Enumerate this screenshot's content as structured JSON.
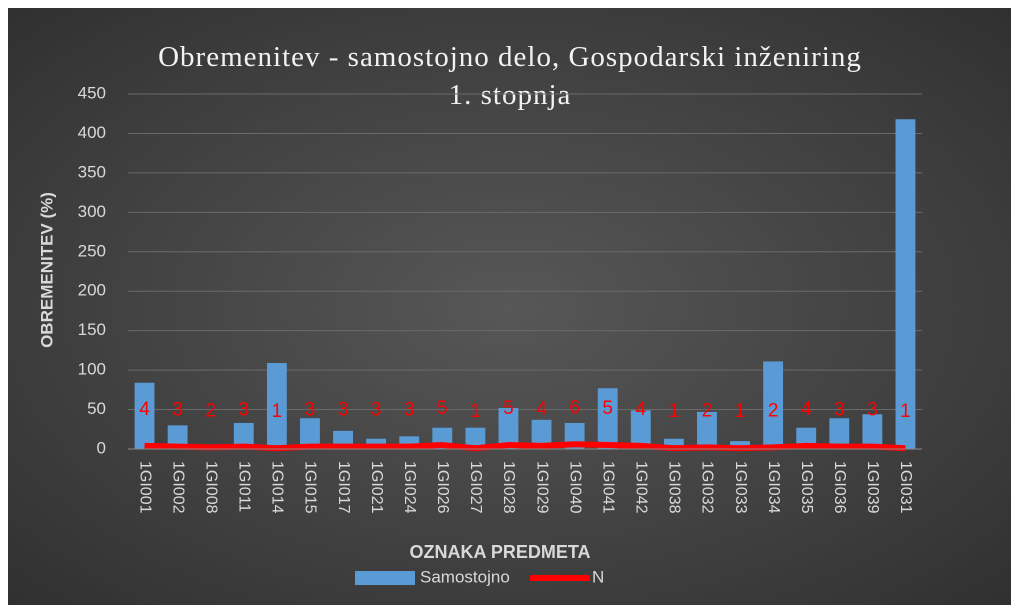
{
  "chart_data": {
    "type": "bar",
    "title": "Obremenitev - samostojno delo, Gospodarski inženiring 1. stopnja",
    "x_label": "OZNAKA PREDMETA",
    "y_label": "OBREMENITEV (%)",
    "categories": [
      "1GI001",
      "1GI002",
      "1GI008",
      "1GI011",
      "1GI014",
      "1GI015",
      "1GI017",
      "1GI021",
      "1GI024",
      "1GI026",
      "1GI027",
      "1GI028",
      "1GI029",
      "1GI040",
      "1GI041",
      "1GI042",
      "1GI038",
      "1GI032",
      "1GI033",
      "1GI034",
      "1GI035",
      "1GI036",
      "1GI039",
      "1GI031"
    ],
    "series": [
      {
        "name": "Samostojno",
        "type": "bar",
        "color": "#5b9bd5",
        "values": [
          84,
          30,
          3,
          33,
          109,
          39,
          23,
          13,
          16,
          27,
          27,
          52,
          37,
          33,
          77,
          49,
          13,
          47,
          10,
          111,
          27,
          39,
          44,
          418
        ]
      },
      {
        "name": "N",
        "type": "line",
        "color": "#ff0000",
        "data_labels": true,
        "values": [
          4,
          3,
          2,
          3,
          1,
          3,
          3,
          3,
          3,
          5,
          1,
          5,
          4,
          6,
          5,
          4,
          1,
          2,
          1,
          2,
          4,
          3,
          3,
          1
        ]
      }
    ],
    "ylim": [
      0,
      450
    ],
    "yticks": [
      0,
      50,
      100,
      150,
      200,
      250,
      300,
      350,
      400,
      450
    ],
    "grid": true,
    "legend": "bottom"
  }
}
